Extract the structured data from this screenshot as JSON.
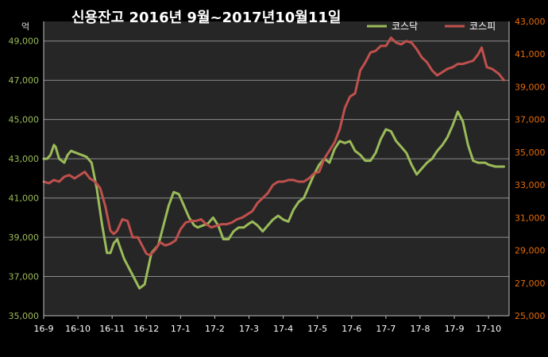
{
  "chart_data": {
    "type": "line",
    "title": "신용잔고  2016년 9월~2017년10월11일",
    "left_axis": {
      "unit": "억",
      "ylim": [
        35000,
        50000
      ],
      "ticks": [
        "35,000",
        "37,000",
        "39,000",
        "41,000",
        "43,000",
        "45,000",
        "47,000",
        "49,000"
      ],
      "tick_values": [
        35000,
        37000,
        39000,
        41000,
        43000,
        45000,
        47000,
        49000
      ]
    },
    "right_axis": {
      "ylim": [
        25000,
        43000
      ],
      "ticks": [
        "25,000",
        "27,000",
        "29,000",
        "31,000",
        "33,000",
        "35,000",
        "37,000",
        "39,000",
        "41,000",
        "43,000"
      ],
      "tick_values": [
        25000,
        27000,
        29000,
        31000,
        33000,
        35000,
        37000,
        39000,
        41000,
        43000
      ]
    },
    "categories": [
      "16-9",
      "16-10",
      "16-11",
      "16-12",
      "17-1",
      "17-2",
      "17-3",
      "17-4",
      "17-5",
      "17-6",
      "17-7",
      "17-8",
      "17-9",
      "17-10"
    ],
    "grid": true,
    "legend_position": "top-right",
    "series": [
      {
        "name": "코스닥",
        "axis": "left",
        "color": "#9bbb59",
        "x": [
          0,
          0.1,
          0.2,
          0.3,
          0.35,
          0.45,
          0.6,
          0.7,
          0.8,
          0.95,
          1.1,
          1.25,
          1.4,
          1.55,
          1.7,
          1.85,
          1.95,
          2.05,
          2.15,
          2.25,
          2.35,
          2.5,
          2.65,
          2.8,
          2.95,
          3.05,
          3.15,
          3.25,
          3.35,
          3.5,
          3.65,
          3.8,
          3.95,
          4.1,
          4.25,
          4.4,
          4.5,
          4.65,
          4.8,
          4.95,
          5.1,
          5.25,
          5.4,
          5.55,
          5.7,
          5.85,
          6.0,
          6.1,
          6.25,
          6.4,
          6.55,
          6.7,
          6.85,
          7.0,
          7.15,
          7.3,
          7.45,
          7.6,
          7.75,
          7.9,
          8.05,
          8.2,
          8.35,
          8.5,
          8.65,
          8.8,
          8.95,
          9.1,
          9.25,
          9.4,
          9.55,
          9.7,
          9.85,
          10.0,
          10.15,
          10.3,
          10.45,
          10.6,
          10.75,
          10.9,
          11.05,
          11.2,
          11.35,
          11.5,
          11.65,
          11.8,
          11.95,
          12.1,
          12.25,
          12.4,
          12.55,
          12.7,
          12.8,
          12.9,
          13.0,
          13.2,
          13.45
        ],
        "y": [
          43000,
          43000,
          43200,
          43700,
          43600,
          43000,
          42800,
          43200,
          43400,
          43300,
          43200,
          43100,
          42800,
          41500,
          39700,
          38200,
          38200,
          38700,
          38900,
          38400,
          37900,
          37400,
          36900,
          36400,
          36600,
          37400,
          38200,
          38400,
          38600,
          39600,
          40600,
          41300,
          41200,
          40600,
          40000,
          39600,
          39500,
          39600,
          39700,
          40000,
          39600,
          38900,
          38900,
          39300,
          39500,
          39500,
          39700,
          39800,
          39600,
          39300,
          39600,
          39900,
          40100,
          39900,
          39800,
          40400,
          40800,
          41000,
          41600,
          42200,
          42700,
          43000,
          42800,
          43500,
          43900,
          43800,
          43900,
          43400,
          43200,
          42900,
          42900,
          43300,
          44000,
          44500,
          44400,
          43900,
          43600,
          43300,
          42700,
          42200,
          42500,
          42800,
          43000,
          43400,
          43700,
          44100,
          44700,
          45400,
          44900,
          43700,
          42900,
          42800,
          42800,
          42800,
          42700,
          42600,
          42600
        ]
      },
      {
        "name": "코스피",
        "axis": "right",
        "color": "#c0504d",
        "x": [
          0,
          0.15,
          0.3,
          0.45,
          0.6,
          0.75,
          0.9,
          1.05,
          1.2,
          1.35,
          1.5,
          1.65,
          1.8,
          1.95,
          2.05,
          2.15,
          2.3,
          2.45,
          2.6,
          2.75,
          2.9,
          3.0,
          3.1,
          3.25,
          3.4,
          3.55,
          3.7,
          3.85,
          4.0,
          4.15,
          4.3,
          4.45,
          4.6,
          4.75,
          4.9,
          5.05,
          5.2,
          5.35,
          5.5,
          5.65,
          5.8,
          5.95,
          6.1,
          6.25,
          6.4,
          6.55,
          6.7,
          6.85,
          7.0,
          7.15,
          7.3,
          7.45,
          7.6,
          7.75,
          7.9,
          8.05,
          8.2,
          8.35,
          8.5,
          8.65,
          8.8,
          8.95,
          9.1,
          9.25,
          9.4,
          9.55,
          9.7,
          9.85,
          10.0,
          10.15,
          10.3,
          10.45,
          10.6,
          10.75,
          10.9,
          11.05,
          11.2,
          11.35,
          11.5,
          11.65,
          11.8,
          11.95,
          12.1,
          12.25,
          12.4,
          12.55,
          12.7,
          12.8,
          12.95,
          13.1,
          13.3,
          13.45
        ],
        "y": [
          33200,
          33100,
          33300,
          33200,
          33500,
          33600,
          33400,
          33600,
          33800,
          33400,
          33200,
          32800,
          31700,
          30200,
          30000,
          30200,
          30900,
          30800,
          29800,
          29800,
          29200,
          28800,
          28700,
          29000,
          29500,
          29300,
          29400,
          29600,
          30300,
          30700,
          30800,
          30800,
          30900,
          30600,
          30400,
          30500,
          30600,
          30600,
          30700,
          30900,
          31000,
          31200,
          31400,
          31900,
          32200,
          32500,
          33000,
          33200,
          33200,
          33300,
          33300,
          33200,
          33200,
          33400,
          33700,
          33800,
          34600,
          35100,
          35600,
          36400,
          37700,
          38400,
          38600,
          40000,
          40500,
          41100,
          41200,
          41500,
          41500,
          42000,
          41700,
          41600,
          41800,
          41700,
          41300,
          40800,
          40500,
          40000,
          39700,
          39900,
          40100,
          40200,
          40400,
          40400,
          40500,
          40600,
          41000,
          41400,
          40200,
          40100,
          39800,
          39400
        ]
      }
    ]
  }
}
